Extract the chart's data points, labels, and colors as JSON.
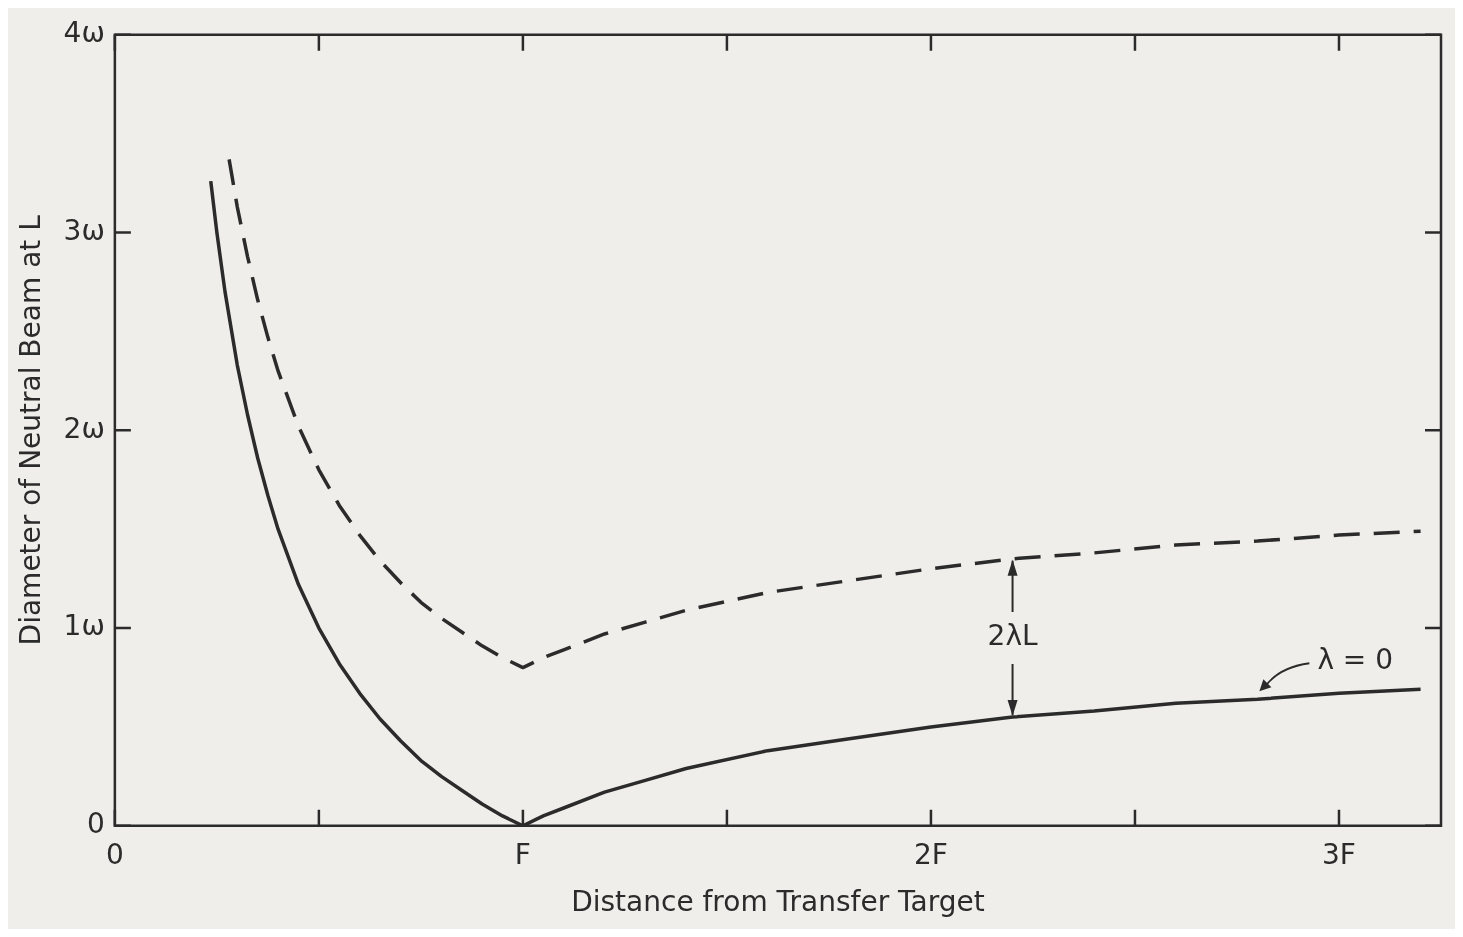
{
  "chart_data": {
    "type": "line",
    "xlabel": "Distance from Transfer Target",
    "ylabel": "Diameter of Neutral Beam at L",
    "xlim": [
      0,
      3.25
    ],
    "ylim": [
      0,
      4
    ],
    "xticks": [
      0,
      {
        "value": 0.5,
        "label": null
      },
      {
        "value": 1,
        "label": "F"
      },
      {
        "value": 1.5,
        "label": null
      },
      {
        "value": 2,
        "label": "2F"
      },
      {
        "value": 2.5,
        "label": null
      },
      {
        "value": 3,
        "label": "3F"
      }
    ],
    "yticks": [
      0,
      {
        "value": 1,
        "label": "1ω"
      },
      {
        "value": 2,
        "label": "2ω"
      },
      {
        "value": 3,
        "label": "3ω"
      },
      {
        "value": 4,
        "label": "4ω"
      }
    ],
    "grid": false,
    "legend": false,
    "marker": "none",
    "series": [
      {
        "color": "#2b2b2b",
        "line_style": "solid",
        "x": [
          0.235,
          0.25,
          0.27,
          0.3,
          0.325,
          0.35,
          0.375,
          0.4,
          0.45,
          0.5,
          0.55,
          0.6,
          0.65,
          0.7,
          0.75,
          0.8,
          0.85,
          0.9,
          0.95,
          1.0,
          1.05,
          1.1,
          1.2,
          1.3,
          1.4,
          1.6,
          1.8,
          2.0,
          2.2,
          2.4,
          2.6,
          2.8,
          3.0,
          3.2
        ],
        "values": [
          3.26,
          3.0,
          2.7,
          2.33,
          2.08,
          1.86,
          1.67,
          1.5,
          1.22,
          1.0,
          0.82,
          0.67,
          0.54,
          0.43,
          0.33,
          0.25,
          0.18,
          0.11,
          0.05,
          0,
          0.05,
          0.09,
          0.17,
          0.23,
          0.29,
          0.38,
          0.44,
          0.5,
          0.55,
          0.58,
          0.62,
          0.64,
          0.67,
          0.69
        ]
      },
      {
        "color": "#2b2b2b",
        "line_style": "dashed",
        "x": [
          0.28,
          0.3,
          0.325,
          0.35,
          0.375,
          0.4,
          0.45,
          0.5,
          0.55,
          0.6,
          0.65,
          0.7,
          0.75,
          0.8,
          0.85,
          0.9,
          0.95,
          1.0,
          1.05,
          1.1,
          1.2,
          1.3,
          1.4,
          1.6,
          1.8,
          2.0,
          2.2,
          2.4,
          2.6,
          2.8,
          3.0,
          3.2
        ],
        "values": [
          3.37,
          3.13,
          2.88,
          2.66,
          2.47,
          2.3,
          2.02,
          1.8,
          1.62,
          1.47,
          1.34,
          1.23,
          1.13,
          1.05,
          0.98,
          0.91,
          0.85,
          0.8,
          0.85,
          0.89,
          0.97,
          1.03,
          1.09,
          1.18,
          1.24,
          1.3,
          1.35,
          1.38,
          1.42,
          1.44,
          1.47,
          1.49
        ]
      }
    ],
    "annotations": [
      {
        "text": "2λL",
        "x": 2.2,
        "y": 1.35
      },
      {
        "text": "λ = 0",
        "x": 2.8,
        "y": 0.64
      }
    ]
  }
}
